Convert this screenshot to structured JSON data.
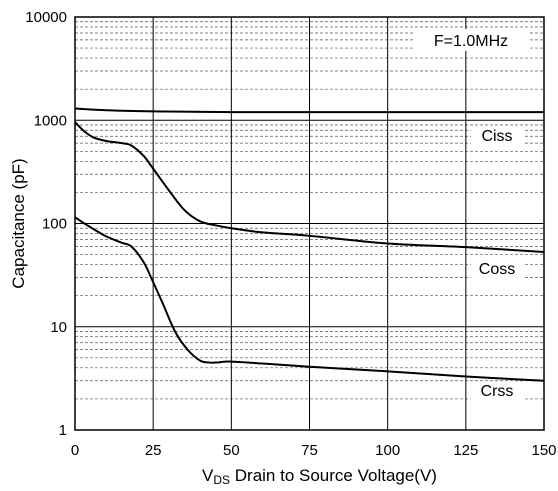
{
  "chart_data": {
    "type": "line",
    "title": "",
    "xlabel": {
      "prefix": "V",
      "subscript": "DS",
      "rest": " Drain to Source Voltage(V)"
    },
    "ylabel": "Capacitance (pF)",
    "xlim": [
      0,
      150
    ],
    "ylim": [
      1,
      10000
    ],
    "yscale": "log",
    "grid": true,
    "x_ticks": [
      "0",
      "25",
      "50",
      "75",
      "100",
      "125",
      "150"
    ],
    "y_ticks": [
      "1",
      "10",
      "100",
      "1000",
      "10000"
    ],
    "annotation": "F=1.0MHz",
    "series": [
      {
        "name": "Ciss",
        "color": "#000000",
        "x": [
          0,
          10,
          25,
          50,
          75,
          100,
          125,
          150
        ],
        "y": [
          1300,
          1250,
          1220,
          1200,
          1200,
          1200,
          1200,
          1200
        ]
      },
      {
        "name": "Coss",
        "color": "#000000",
        "x": [
          0,
          3,
          6,
          10,
          15,
          18,
          22,
          25,
          30,
          35,
          40,
          45,
          50,
          60,
          75,
          100,
          125,
          150
        ],
        "y": [
          960,
          780,
          680,
          630,
          600,
          570,
          450,
          340,
          210,
          135,
          105,
          96,
          90,
          82,
          76,
          64,
          59,
          53
        ]
      },
      {
        "name": "Crss",
        "color": "#000000",
        "x": [
          0,
          3,
          6,
          10,
          15,
          18,
          22,
          25,
          28,
          32,
          36,
          40,
          43,
          45,
          50,
          60,
          75,
          100,
          125,
          150
        ],
        "y": [
          115,
          100,
          88,
          75,
          65,
          60,
          42,
          27,
          17,
          9,
          6,
          4.7,
          4.5,
          4.5,
          4.6,
          4.4,
          4.1,
          3.7,
          3.3,
          3.0
        ]
      }
    ]
  }
}
